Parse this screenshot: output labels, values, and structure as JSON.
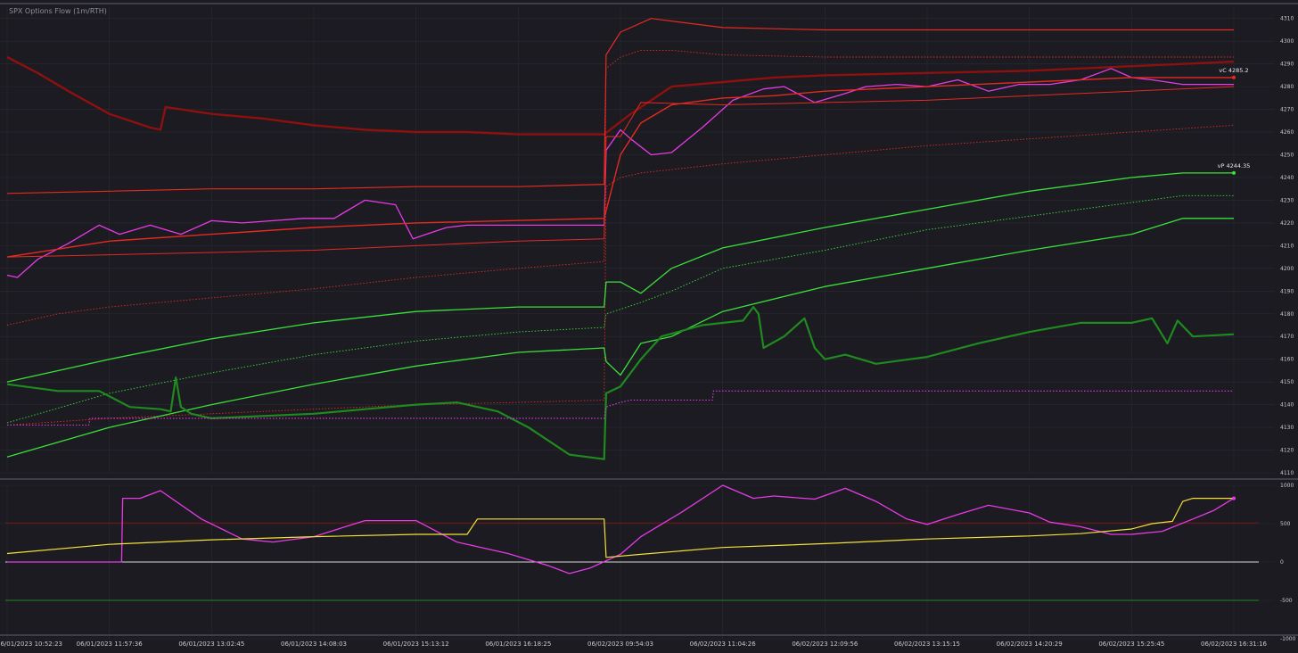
{
  "title": "SPX Options Flow (1m/RTH)",
  "colors": {
    "background": "#1b1b21",
    "grid": "#2a2b33",
    "separator": "#3d3e48",
    "red_bright": "#e52a22",
    "red_dark": "#8e1010",
    "green_bright": "#3be03b",
    "green_dark": "#1f8a1f",
    "magenta": "#e63be6",
    "yellow": "#f2e23a",
    "white": "#d8d8d8"
  },
  "x_ticks": [
    "06/01/2023 10:52:23",
    "06/01/2023 11:57:36",
    "06/01/2023 13:02:45",
    "06/01/2023 14:08:03",
    "06/01/2023 15:13:12",
    "06/01/2023 16:18:25",
    "06/02/2023 09:54:03",
    "06/02/2023 11:04:26",
    "06/02/2023 12:09:56",
    "06/02/2023 13:15:15",
    "06/02/2023 14:20:29",
    "06/02/2023 15:25:45",
    "06/02/2023 16:31:16"
  ],
  "chart_data": [
    {
      "type": "line",
      "title": "SPX Options Flow (1m/RTH)",
      "x_categories": [
        "06/01/2023 10:52:23",
        "06/01/2023 11:57:36",
        "06/01/2023 13:02:45",
        "06/01/2023 14:08:03",
        "06/01/2023 15:13:12",
        "06/01/2023 16:18:25",
        "06/02/2023 09:54:03",
        "06/02/2023 11:04:26",
        "06/02/2023 12:09:56",
        "06/02/2023 13:15:15",
        "06/02/2023 14:20:29",
        "06/02/2023 15:25:45",
        "06/02/2023 16:31:16"
      ],
      "x": [
        0,
        1,
        2,
        3,
        4,
        5,
        6,
        7,
        8,
        9,
        10,
        11,
        12
      ],
      "y_axis_side": "right",
      "ylim": [
        4110,
        4315
      ],
      "y_ticks": [
        4110,
        4120,
        4130,
        4140,
        4150,
        4160,
        4170,
        4180,
        4190,
        4200,
        4210,
        4220,
        4230,
        4240,
        4250,
        4260,
        4270,
        4280,
        4290,
        4300,
        4310
      ],
      "annotations": [
        {
          "text": "vC 4285.2",
          "x": 12,
          "y": 4284
        },
        {
          "text": "vP 4244.35",
          "x": 12,
          "y": 4242
        }
      ],
      "series": [
        {
          "color": "#e63be6",
          "style": "solid",
          "width": 1.3,
          "x": [
            0,
            0.1,
            0.3,
            0.6,
            0.9,
            1.1,
            1.4,
            1.7,
            2.0,
            2.3,
            2.6,
            2.9,
            3.2,
            3.5,
            3.8,
            3.97,
            4.1,
            4.3,
            4.5,
            4.7,
            4.96,
            5.5,
            5.84,
            5.86,
            6.0,
            6.1,
            6.3,
            6.5,
            6.8,
            7.1,
            7.4,
            7.6,
            7.9,
            8.2,
            8.4,
            8.7,
            9.0,
            9.3,
            9.6,
            9.9,
            10.2,
            10.5,
            10.8,
            11.0,
            11.2,
            11.5,
            11.7,
            12.0
          ],
          "y": [
            4197,
            4196,
            4204,
            4211,
            4219,
            4215,
            4219,
            4215,
            4221,
            4220,
            4221,
            4222,
            4222,
            4230,
            4228,
            4213,
            4215,
            4218,
            4219,
            4219,
            4219,
            4219,
            4219,
            4252,
            4261,
            4257,
            4250,
            4251,
            4262,
            4274,
            4279,
            4280,
            4273,
            4277,
            4280,
            4281,
            4280,
            4283,
            4278,
            4281,
            4281,
            4283,
            4288,
            4284,
            4283,
            4281,
            4281,
            4281
          ]
        },
        {
          "color": "#e52a22",
          "style": "solid",
          "width": 1.4,
          "x": [
            0,
            1,
            2,
            3,
            4,
            5.84,
            6.0,
            6.2,
            6.5,
            7.0,
            7.5,
            8,
            9,
            10,
            11,
            11.5,
            12
          ],
          "y": [
            4205,
            4212,
            4215,
            4218,
            4220,
            4222,
            4250,
            4264,
            4272,
            4275,
            4276,
            4278,
            4280,
            4282,
            4284,
            4284,
            4284
          ]
        },
        {
          "color": "#8e1010",
          "style": "solid",
          "width": 2.4,
          "x": [
            0,
            0.3,
            0.6,
            1.0,
            1.4,
            1.5,
            1.55,
            2.0,
            2.5,
            3.0,
            3.5,
            4.0,
            4.5,
            5.0,
            5.84,
            6.1,
            6.5,
            7.0,
            7.5,
            8,
            9,
            10,
            11,
            11.5,
            12
          ],
          "y": [
            4293,
            4286,
            4278,
            4268,
            4262,
            4261,
            4271,
            4268,
            4266,
            4263,
            4261,
            4260,
            4260,
            4259,
            4259,
            4268,
            4280,
            4282,
            4284,
            4285,
            4286,
            4287,
            4289,
            4290,
            4291
          ]
        },
        {
          "color": "#e52a22",
          "style": "solid",
          "width": 1.2,
          "x": [
            0,
            1,
            2,
            3,
            4,
            5,
            5.84,
            5.86,
            6.0,
            6.3,
            7,
            8,
            9,
            10,
            11,
            12
          ],
          "y": [
            4233,
            4234,
            4235,
            4235,
            4236,
            4236,
            4237,
            4294,
            4304,
            4310,
            4306,
            4305,
            4305,
            4305,
            4305,
            4305
          ]
        },
        {
          "color": "#e52a22",
          "style": "solid",
          "width": 1.0,
          "x": [
            0,
            1,
            2,
            3,
            4,
            5,
            5.84,
            5.86,
            6.0,
            6.2,
            7,
            8,
            9,
            10,
            11,
            12
          ],
          "y": [
            4205,
            4206,
            4207,
            4208,
            4210,
            4212,
            4213,
            4258,
            4258,
            4273,
            4272,
            4273,
            4274,
            4276,
            4278,
            4280
          ]
        },
        {
          "color": "#e52a22",
          "style": "dotted",
          "width": 0.9,
          "x": [
            0,
            0.5,
            1,
            2,
            3,
            4,
            5,
            5.84,
            5.86,
            6.0,
            6.2,
            6.5,
            7,
            8,
            9,
            10,
            11,
            12
          ],
          "y": [
            4175,
            4180,
            4183,
            4187,
            4191,
            4196,
            4200,
            4203,
            4288,
            4293,
            4296,
            4296,
            4294,
            4293,
            4293,
            4293,
            4293,
            4293
          ]
        },
        {
          "color": "#e52a22",
          "style": "dotted",
          "width": 0.9,
          "x": [
            0,
            1,
            2,
            3,
            4,
            5,
            5.84,
            5.86,
            6.0,
            6.2,
            7,
            8,
            9,
            10,
            11,
            12
          ],
          "y": [
            4131,
            4134,
            4136,
            4138,
            4140,
            4141,
            4142,
            4236,
            4240,
            4242,
            4246,
            4250,
            4254,
            4257,
            4260,
            4263
          ]
        },
        {
          "color": "#3be03b",
          "style": "solid",
          "width": 1.3,
          "x": [
            0,
            1,
            2,
            3,
            4,
            5,
            5.84,
            5.86,
            6.0,
            6.2,
            6.5,
            7,
            8,
            9,
            10,
            11,
            11.5,
            12
          ],
          "y": [
            4150,
            4160,
            4169,
            4176,
            4181,
            4183,
            4183,
            4194,
            4194,
            4189,
            4200,
            4209,
            4218,
            4226,
            4234,
            4240,
            4242,
            4242
          ]
        },
        {
          "color": "#3be03b",
          "style": "solid",
          "width": 1.3,
          "x": [
            0,
            1,
            2,
            3,
            4,
            5,
            5.84,
            5.86,
            6.0,
            6.2,
            6.5,
            7,
            8,
            9,
            10,
            11,
            11.5,
            12
          ],
          "y": [
            4117,
            4130,
            4140,
            4149,
            4157,
            4163,
            4165,
            4159,
            4153,
            4167,
            4170,
            4181,
            4192,
            4200,
            4208,
            4215,
            4222,
            4222
          ]
        },
        {
          "color": "#3be03b",
          "style": "dotted",
          "width": 0.9,
          "x": [
            0,
            1,
            2,
            3,
            4,
            5,
            5.84,
            5.86,
            6.0,
            6.2,
            6.5,
            7,
            8,
            9,
            10,
            11,
            11.5,
            12
          ],
          "y": [
            4132,
            4145,
            4154,
            4162,
            4168,
            4172,
            4174,
            4180,
            4182,
            4185,
            4190,
            4200,
            4208,
            4217,
            4223,
            4229,
            4232,
            4232
          ]
        },
        {
          "color": "#1f8a1f",
          "style": "solid",
          "width": 2.2,
          "x": [
            0,
            0.5,
            0.9,
            1.2,
            1.5,
            1.6,
            1.65,
            1.7,
            1.8,
            2.0,
            2.5,
            3,
            3.5,
            4,
            4.4,
            4.8,
            5.1,
            5.5,
            5.84,
            5.86,
            6.0,
            6.2,
            6.4,
            6.8,
            7.2,
            7.3,
            7.35,
            7.4,
            7.6,
            7.8,
            7.9,
            8.0,
            8.2,
            8.5,
            9,
            9.5,
            10,
            10.5,
            11,
            11.2,
            11.35,
            11.45,
            11.6,
            12
          ],
          "y": [
            4149,
            4146,
            4146,
            4139,
            4138,
            4137,
            4152,
            4139,
            4136,
            4134,
            4135,
            4136,
            4138,
            4140,
            4141,
            4137,
            4130,
            4118,
            4116,
            4145,
            4148,
            4160,
            4170,
            4175,
            4177,
            4183,
            4180,
            4165,
            4170,
            4178,
            4165,
            4160,
            4162,
            4158,
            4161,
            4167,
            4172,
            4176,
            4176,
            4178,
            4167,
            4177,
            4170,
            4171
          ]
        },
        {
          "color": "#e63be6",
          "style": "dotted",
          "width": 1.1,
          "x": [
            0,
            0.8,
            0.81,
            1.0,
            1.5,
            2,
            3,
            4,
            5,
            5.84,
            5.86,
            6.0,
            6.1,
            6.9,
            6.91,
            8,
            9,
            10,
            11,
            12
          ],
          "y": [
            4131,
            4131,
            4134,
            4134,
            4134,
            4134,
            4134,
            4134,
            4134,
            4134,
            4139,
            4141,
            4142,
            4142,
            4146,
            4146,
            4146,
            4146,
            4146,
            4146
          ]
        }
      ]
    },
    {
      "type": "line",
      "x_categories": [
        "06/01/2023 10:52:23",
        "06/01/2023 11:57:36",
        "06/01/2023 13:02:45",
        "06/01/2023 14:08:03",
        "06/01/2023 15:13:12",
        "06/01/2023 16:18:25",
        "06/02/2023 09:54:03",
        "06/02/2023 11:04:26",
        "06/02/2023 12:09:56",
        "06/02/2023 13:15:15",
        "06/02/2023 14:20:29",
        "06/02/2023 15:25:45",
        "06/02/2023 16:31:16"
      ],
      "x": [
        0,
        1,
        2,
        3,
        4,
        5,
        6,
        7,
        8,
        9,
        10,
        11,
        12
      ],
      "y_axis_side": "right",
      "ylim": [
        -1000,
        1000
      ],
      "y_ticks": [
        -1000,
        -500,
        0,
        500,
        1000
      ],
      "reference_lines": [
        {
          "y": 510,
          "color": "#8e1010"
        },
        {
          "y": 0,
          "color": "#d8d8d8"
        },
        {
          "y": -500,
          "color": "#1f8a1f"
        }
      ],
      "series": [
        {
          "color": "#e63be6",
          "style": "solid",
          "width": 1.3,
          "x": [
            0,
            0.9,
            1.12,
            1.13,
            1.3,
            1.5,
            1.9,
            2.3,
            2.6,
            3.0,
            3.5,
            4.0,
            4.4,
            4.9,
            5.3,
            5.5,
            5.7,
            6.0,
            6.2,
            6.6,
            7.0,
            7.3,
            7.5,
            7.9,
            8.2,
            8.5,
            8.8,
            9.0,
            9.3,
            9.6,
            10.0,
            10.2,
            10.5,
            10.8,
            11.0,
            11.3,
            11.6,
            11.8,
            12.0
          ],
          "y": [
            0,
            0,
            0,
            830,
            830,
            930,
            560,
            300,
            260,
            330,
            540,
            540,
            260,
            110,
            -50,
            -150,
            -80,
            100,
            330,
            650,
            1000,
            830,
            860,
            820,
            960,
            790,
            560,
            490,
            620,
            740,
            640,
            520,
            460,
            360,
            360,
            400,
            560,
            670,
            830
          ]
        },
        {
          "color": "#f2e23a",
          "style": "solid",
          "width": 1.2,
          "x": [
            0,
            1,
            2,
            3,
            4,
            4.5,
            4.6,
            5.0,
            5.5,
            5.84,
            5.86,
            6.2,
            7,
            8,
            9,
            10,
            10.5,
            11.0,
            11.2,
            11.4,
            11.5,
            11.6,
            12.0
          ],
          "y": [
            110,
            230,
            290,
            330,
            360,
            360,
            560,
            560,
            560,
            560,
            60,
            100,
            190,
            240,
            300,
            340,
            370,
            430,
            500,
            530,
            790,
            830,
            830
          ]
        }
      ]
    }
  ]
}
